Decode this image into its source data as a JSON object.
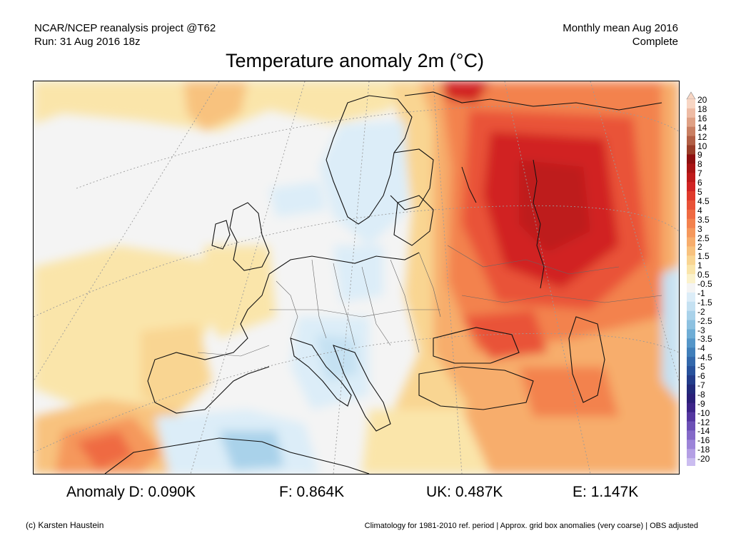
{
  "header": {
    "source_line1": "NCAR/NCEP reanalysis project @T62",
    "source_line2": "Run: 31 Aug 2016 18z",
    "period_line1": "Monthly mean Aug 2016",
    "period_line2": "Complete"
  },
  "title": "Temperature anomaly 2m (°C)",
  "legend": {
    "levels": [
      {
        "label": "20",
        "color": "#f8d6c4"
      },
      {
        "label": "18",
        "color": "#eebba4"
      },
      {
        "label": "16",
        "color": "#dfa084"
      },
      {
        "label": "14",
        "color": "#c97f62"
      },
      {
        "label": "12",
        "color": "#b25f45"
      },
      {
        "label": "10",
        "color": "#9a3d28"
      },
      {
        "label": "9",
        "color": "#8e1010"
      },
      {
        "label": "8",
        "color": "#a81414"
      },
      {
        "label": "7",
        "color": "#be1a1a"
      },
      {
        "label": "6",
        "color": "#d12424"
      },
      {
        "label": "5",
        "color": "#e03a2c"
      },
      {
        "label": "4.5",
        "color": "#e95238"
      },
      {
        "label": "4",
        "color": "#ef6a42"
      },
      {
        "label": "3.5",
        "color": "#f3824e"
      },
      {
        "label": "3",
        "color": "#f5985c"
      },
      {
        "label": "2.5",
        "color": "#f7ad6c"
      },
      {
        "label": "2",
        "color": "#f8c27e"
      },
      {
        "label": "1.5",
        "color": "#f9d592"
      },
      {
        "label": "1",
        "color": "#fae5aa"
      },
      {
        "label": "0.5",
        "color": "#fbf2cc"
      },
      {
        "label": "-0.5",
        "color": "#f4f4f4"
      },
      {
        "label": "-1",
        "color": "#dcedf8"
      },
      {
        "label": "-1.5",
        "color": "#c5e1f2"
      },
      {
        "label": "-2",
        "color": "#a9d2ea"
      },
      {
        "label": "-2.5",
        "color": "#8dc1e0"
      },
      {
        "label": "-3",
        "color": "#6fadd5"
      },
      {
        "label": "-3.5",
        "color": "#5596c8"
      },
      {
        "label": "-4",
        "color": "#417fba"
      },
      {
        "label": "-4.5",
        "color": "#3368ab"
      },
      {
        "label": "-5",
        "color": "#28529c"
      },
      {
        "label": "-6",
        "color": "#233c8a"
      },
      {
        "label": "-7",
        "color": "#222a7a"
      },
      {
        "label": "-8",
        "color": "#2a1f78"
      },
      {
        "label": "-9",
        "color": "#3c2488"
      },
      {
        "label": "-10",
        "color": "#5436a0"
      },
      {
        "label": "-12",
        "color": "#6c50b6"
      },
      {
        "label": "-14",
        "color": "#8469c8"
      },
      {
        "label": "-16",
        "color": "#9c84d8"
      },
      {
        "label": "-18",
        "color": "#b49fe4"
      },
      {
        "label": "-20",
        "color": "#cbbdf0"
      }
    ]
  },
  "anomalies": {
    "D": {
      "label": "Anomaly D:",
      "value": "0.090K"
    },
    "F": {
      "label": "F:",
      "value": "0.864K"
    },
    "UK": {
      "label": "UK:",
      "value": "0.487K"
    },
    "E": {
      "label": "E:",
      "value": "1.147K"
    }
  },
  "footer": {
    "credit": "(c) Karsten Haustein",
    "note": "Climatology for 1981-2010 ref. period | Approx. grid box anomalies (very coarse) | OBS adjusted"
  }
}
